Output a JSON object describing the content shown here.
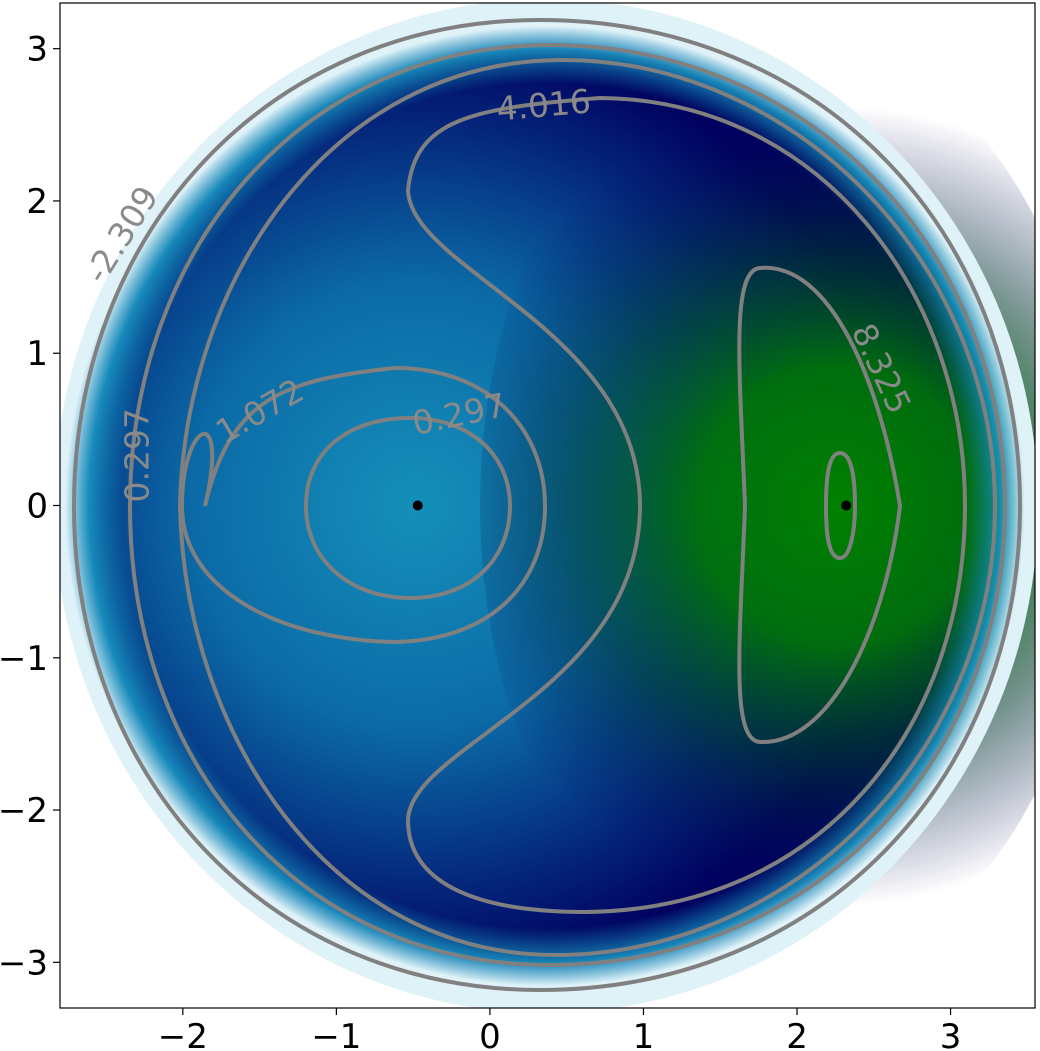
{
  "chart_data": {
    "type": "heatmap",
    "title": "",
    "xlabel": "",
    "ylabel": "",
    "xlim": [
      -2.8,
      3.55
    ],
    "ylim": [
      -3.3,
      3.3
    ],
    "x_ticks": [
      {
        "value": -2,
        "label": "−2"
      },
      {
        "value": -1,
        "label": "−1"
      },
      {
        "value": 0,
        "label": "0"
      },
      {
        "value": 1,
        "label": "1"
      },
      {
        "value": 2,
        "label": "2"
      },
      {
        "value": 3,
        "label": "3"
      }
    ],
    "y_ticks": [
      {
        "value": 3,
        "label": "3"
      },
      {
        "value": 2,
        "label": "2"
      },
      {
        "value": 1,
        "label": "1"
      },
      {
        "value": 0,
        "label": "0"
      },
      {
        "value": -1,
        "label": "−1"
      },
      {
        "value": -2,
        "label": "−2"
      },
      {
        "value": -3,
        "label": "−3"
      }
    ],
    "grid": false,
    "colormap": [
      "#ffffff",
      "#0f8fb8",
      "#00005e",
      "#008000"
    ],
    "contour_color": "#808080",
    "contour_levels": [
      {
        "label": "-2.309",
        "x": -2.4,
        "y": 1.78,
        "angle": -58
      },
      {
        "label": "0.297",
        "x": -2.3,
        "y": 0.33,
        "angle": -90
      },
      {
        "label": "0.297",
        "x": -0.2,
        "y": 0.6,
        "angle": -12
      },
      {
        "label": "1.072",
        "x": -1.5,
        "y": 0.62,
        "angle": -30
      },
      {
        "label": "4.016",
        "x": 0.35,
        "y": 2.63,
        "angle": -5
      },
      {
        "label": "8.325",
        "x": 2.55,
        "y": 0.9,
        "angle": 65
      }
    ],
    "critical_points": [
      {
        "x": -0.47,
        "y": 0.0
      },
      {
        "x": 2.32,
        "y": 0.0
      }
    ]
  }
}
